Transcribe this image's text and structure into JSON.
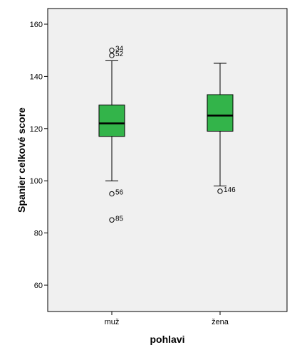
{
  "chart_data": {
    "type": "boxplot",
    "title": "",
    "xlabel": "pohlavi",
    "ylabel": "Spanier celkové score",
    "ylim": [
      50,
      165
    ],
    "yticks": [
      60,
      80,
      100,
      120,
      140,
      160
    ],
    "categories": [
      "muž",
      "žena"
    ],
    "boxes": [
      {
        "category": "muž",
        "whisker_low": 100,
        "q1": 117,
        "median": 122,
        "q3": 129,
        "whisker_high": 146,
        "outliers": [
          {
            "value": 150,
            "label": "34"
          },
          {
            "value": 148,
            "label": "52"
          },
          {
            "value": 95,
            "label": "56"
          },
          {
            "value": 85,
            "label": "85"
          }
        ]
      },
      {
        "category": "žena",
        "whisker_low": 98,
        "q1": 119,
        "median": 125,
        "q3": 133,
        "whisker_high": 145,
        "outliers": [
          {
            "value": 96,
            "label": "146"
          }
        ]
      }
    ],
    "colors": {
      "box_fill": "#33b44a",
      "plot_background": "#f0f0f0",
      "line": "#000000"
    },
    "grid": false,
    "legend": "none"
  }
}
